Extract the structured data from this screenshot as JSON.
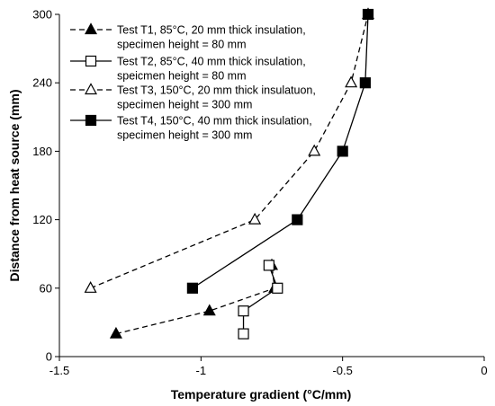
{
  "chart_data": {
    "type": "scatter",
    "title": "",
    "xlabel": "Temperature gradient (°C/mm)",
    "ylabel": "Distance from heat source (mm)",
    "xlim": [
      -1.5,
      0
    ],
    "ylim": [
      0,
      300
    ],
    "xticks": [
      -1.5,
      -1,
      -0.5,
      0
    ],
    "xtick_labels": [
      "-1.5",
      "-1",
      "-0.5",
      "0"
    ],
    "yticks": [
      0,
      60,
      120,
      180,
      240,
      300
    ],
    "ytick_labels": [
      "0",
      "60",
      "120",
      "180",
      "240",
      "300"
    ],
    "grid": false,
    "legend_position": "top-left",
    "series": [
      {
        "name": "Test T1, 85°C, 20 mm thick insulation, specimen height = 80 mm",
        "legend_lines": [
          "Test T1, 85°C, 20 mm thick insulation,",
          "specimen height = 80 mm"
        ],
        "marker": "triangle-filled",
        "line": "dashed",
        "x": [
          -1.3,
          -0.97,
          -0.74,
          -0.75
        ],
        "y": [
          20,
          40,
          60,
          80
        ]
      },
      {
        "name": "Test T2, 85°C, 40 mm thick insulation, speicmen height = 80 mm",
        "legend_lines": [
          "Test T2, 85°C, 40 mm thick insulation,",
          "speicmen height = 80 mm"
        ],
        "marker": "square-open",
        "line": "solid",
        "x": [
          -0.85,
          -0.85,
          -0.73,
          -0.76
        ],
        "y": [
          20,
          40,
          60,
          80
        ]
      },
      {
        "name": "Test T3, 150°C, 20 mm thick insulatuon, specimen height = 300 mm",
        "legend_lines": [
          "Test T3, 150°C, 20 mm thick insulatuon,",
          "specimen height = 300 mm"
        ],
        "marker": "triangle-open",
        "line": "dashed",
        "x": [
          -1.39,
          -0.81,
          -0.6,
          -0.47,
          -0.41
        ],
        "y": [
          60,
          120,
          180,
          240,
          300
        ]
      },
      {
        "name": "Test T4, 150°C, 40 mm thick insulation, specimen height = 300 mm",
        "legend_lines": [
          "Test T4, 150°C, 40 mm thick insulation,",
          "specimen height = 300 mm"
        ],
        "marker": "square-filled",
        "line": "solid",
        "x": [
          -1.03,
          -0.66,
          -0.5,
          -0.42,
          -0.41
        ],
        "y": [
          60,
          120,
          180,
          240,
          300
        ]
      }
    ]
  }
}
